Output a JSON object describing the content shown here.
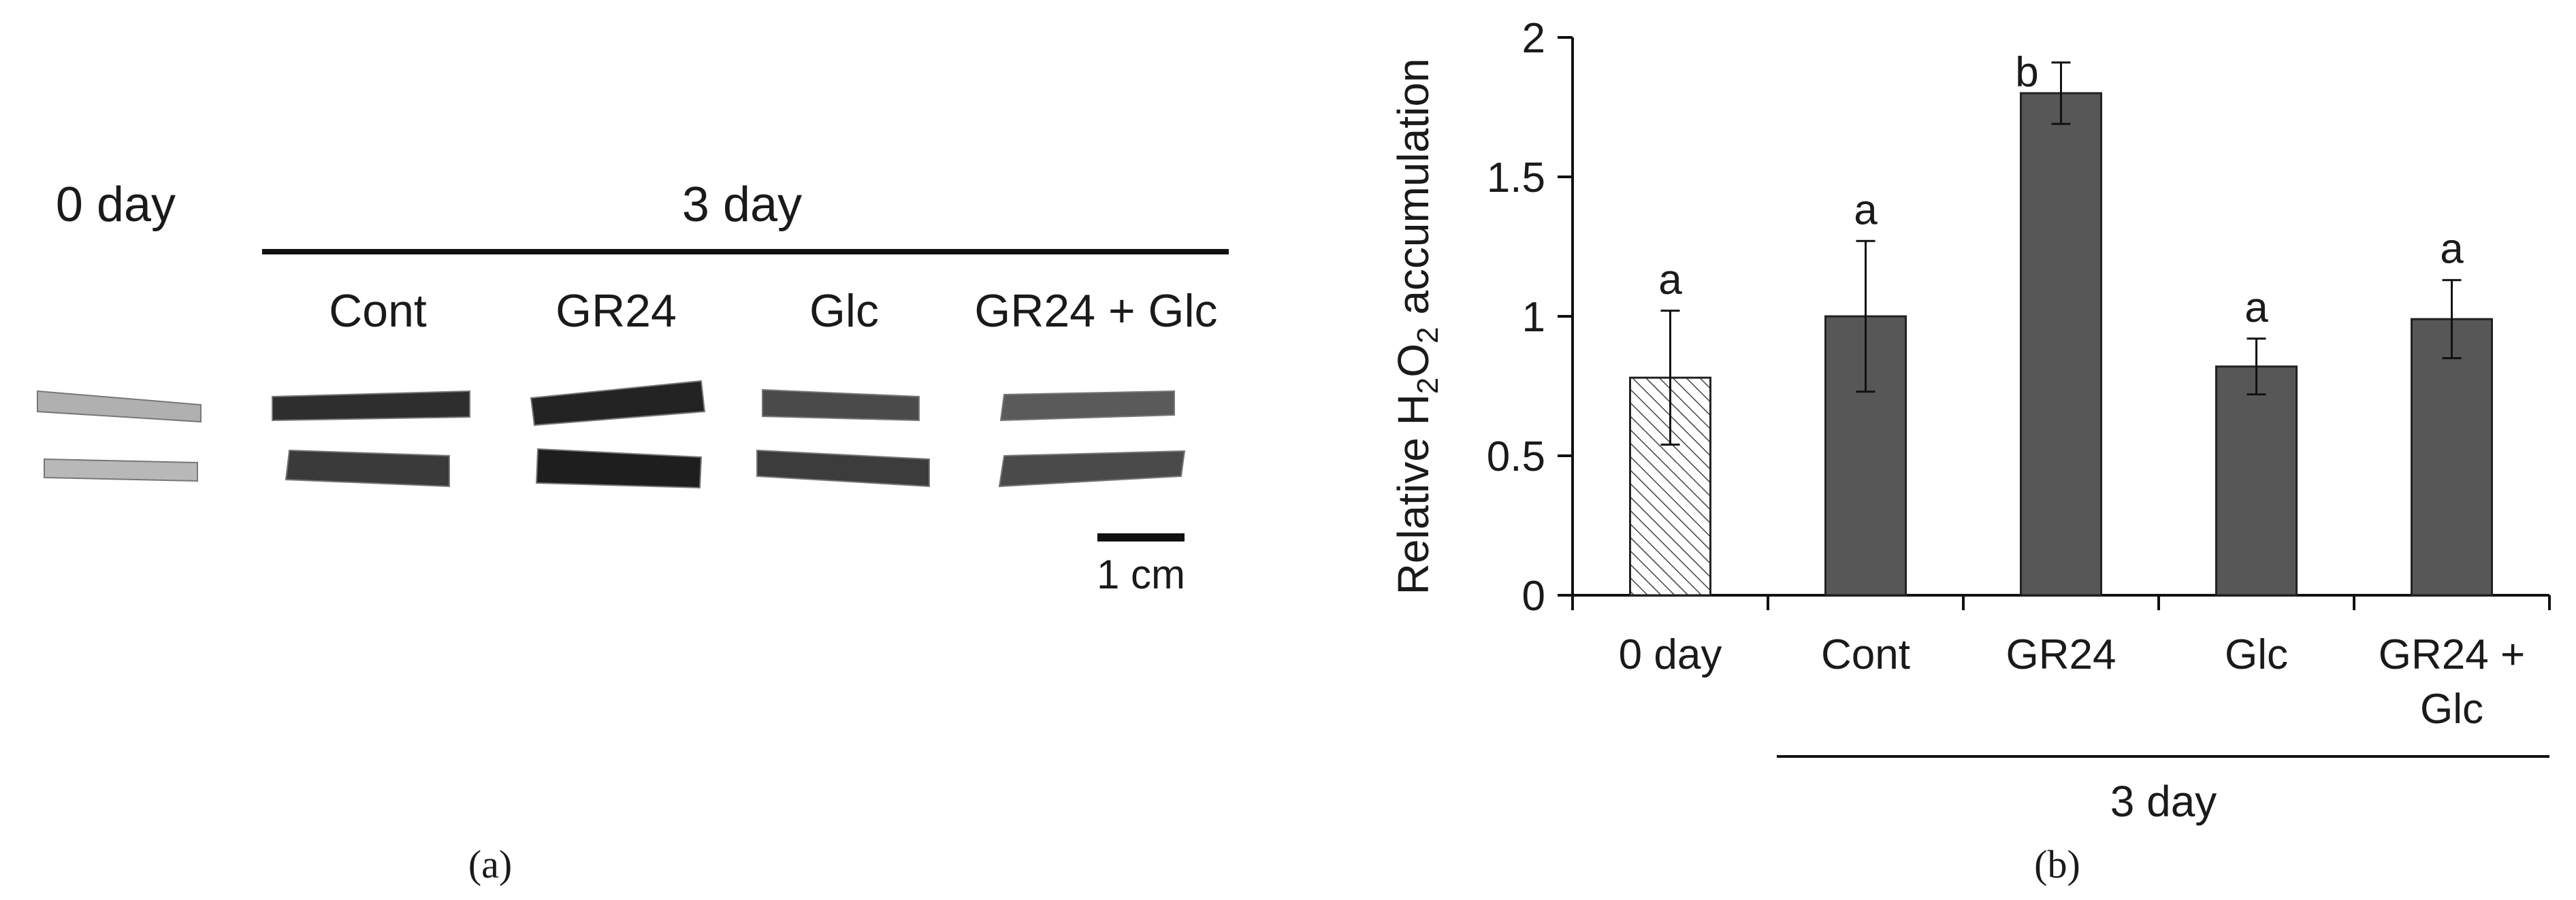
{
  "panel_a": {
    "label": "(a)",
    "group_label_0": "0 day",
    "group_label_3": "3 day",
    "columns": [
      "Cont",
      "GR24",
      "Glc",
      "GR24 + Glc"
    ],
    "scale_bar_label": "1 cm",
    "leaf_shades": [
      [
        "#b0b0b0",
        "#b8b8b8"
      ],
      [
        "#2e2e2e",
        "#3a3a3a"
      ],
      [
        "#232323",
        "#1e1e1e"
      ],
      [
        "#4a4a4a",
        "#3c3c3c"
      ],
      [
        "#5a5a5a",
        "#4a4a4a"
      ]
    ]
  },
  "panel_b": {
    "label": "(b)",
    "group_label": "3 day"
  },
  "chart_data": {
    "type": "bar",
    "categories": [
      "0 day",
      "Cont",
      "GR24",
      "Glc",
      "GR24 + Glc"
    ],
    "category_lines": [
      [
        "0 day"
      ],
      [
        "Cont"
      ],
      [
        "GR24"
      ],
      [
        "Glc"
      ],
      [
        "GR24 +",
        "Glc"
      ]
    ],
    "values": [
      0.78,
      1.0,
      1.8,
      0.82,
      0.99
    ],
    "errors": [
      0.24,
      0.27,
      0.11,
      0.1,
      0.14
    ],
    "significance": [
      "a",
      "a",
      "b",
      "a",
      "a"
    ],
    "ylabel": "Relative H2O2 accumulation",
    "ylabel_parts": {
      "pre": "Relative H",
      "sub1": "2",
      "mid": "O",
      "sub2": "2",
      "post": " accumulation"
    },
    "ylim": [
      0,
      2
    ],
    "yticks": [
      "0",
      "0.5",
      "1",
      "1.5",
      "2"
    ],
    "grid": false,
    "bar_colors": [
      "hatched",
      "#575757",
      "#575757",
      "#575757",
      "#575757"
    ]
  }
}
